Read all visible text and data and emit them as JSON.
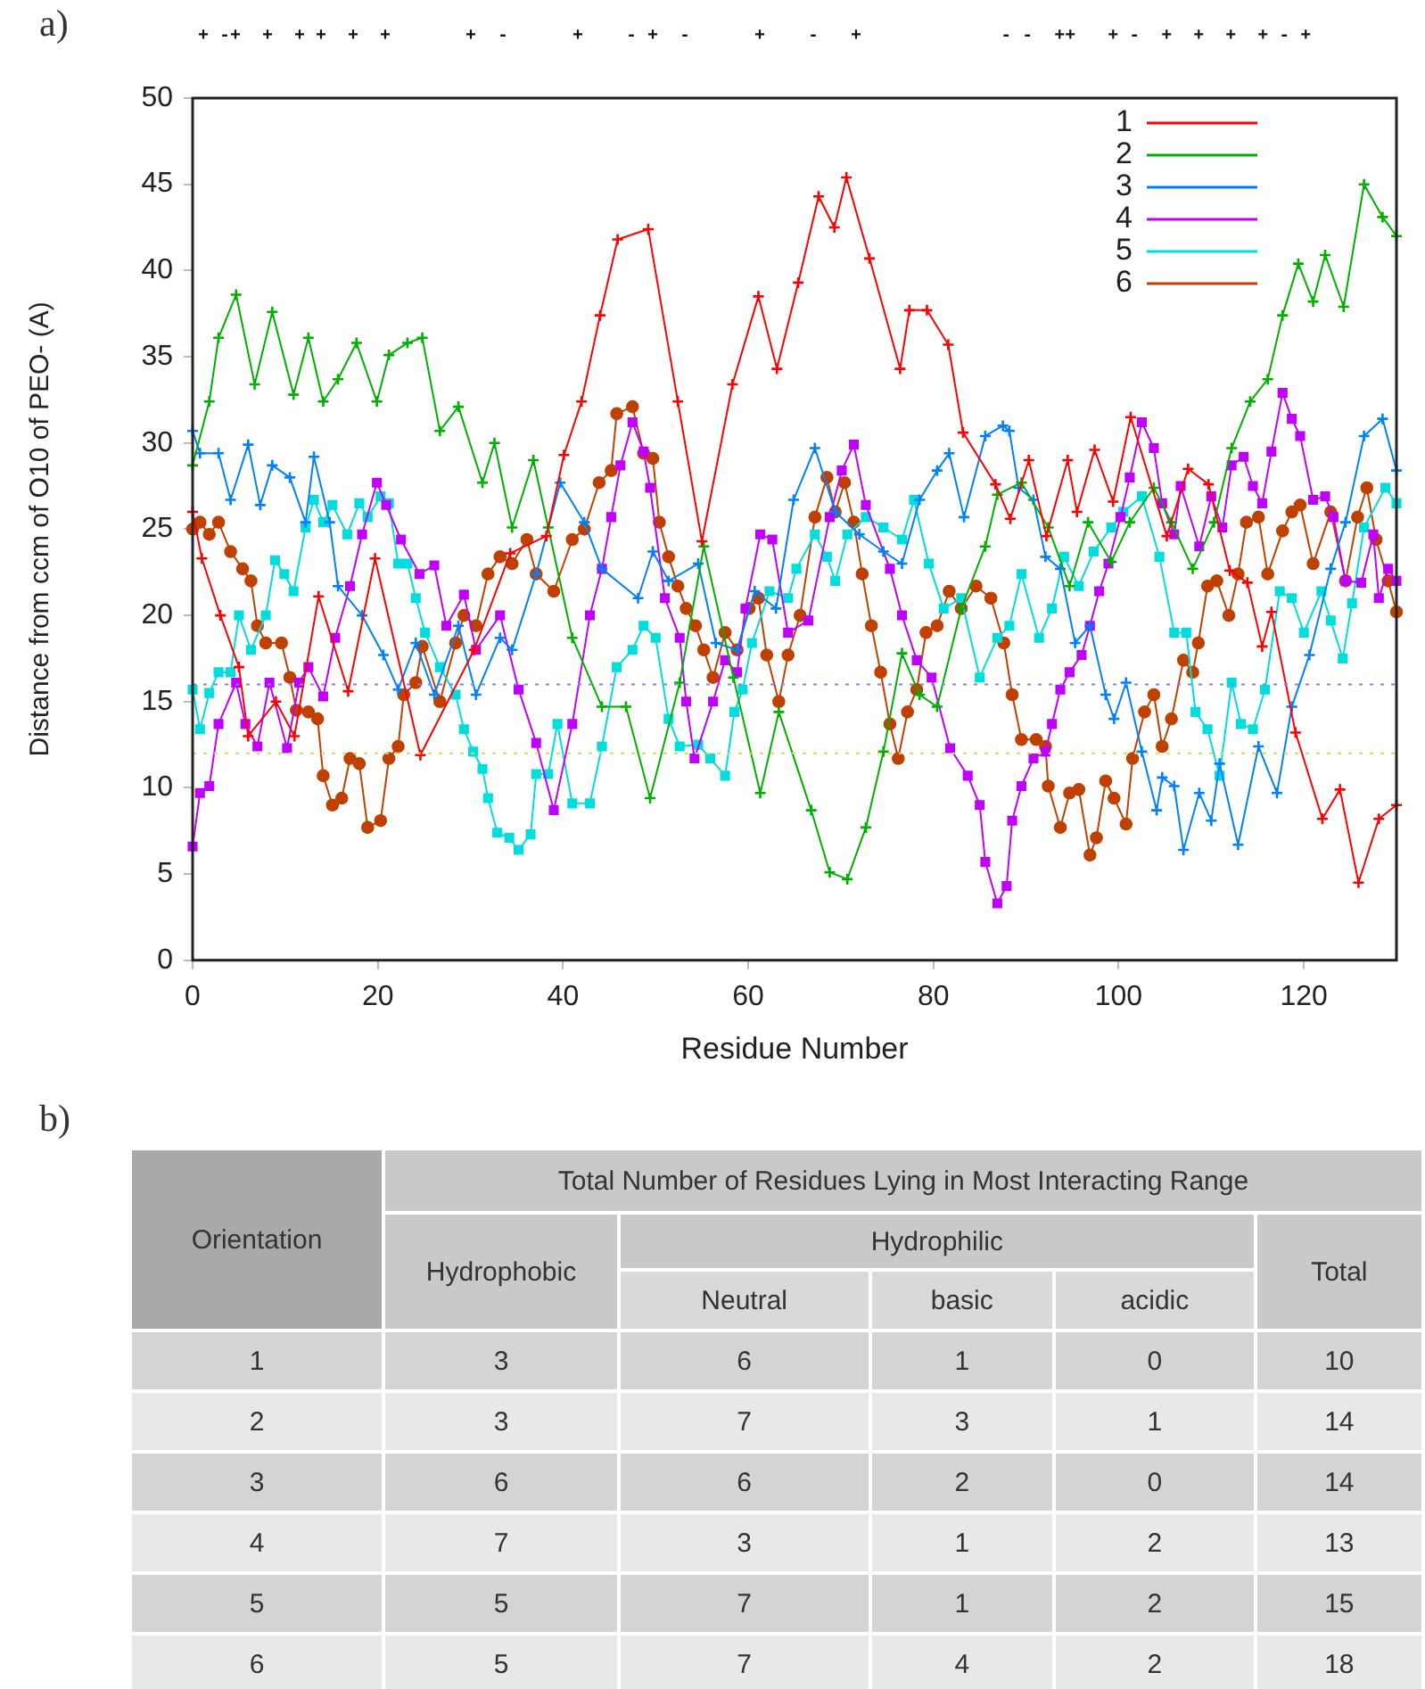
{
  "chart_data": [
    {
      "type": "line",
      "title": "a)",
      "annotations": [
        " + -+  +  + +  +  +       +  -      +    - +  -      +    -   +             - -  ++   + -  +  +  +  + - +"
      ],
      "xlabel": "Residue Number",
      "ylabel": "Distance from ccm of O10 of PEO- (A)",
      "xlim": [
        0,
        130
      ],
      "xticks": [
        0,
        20,
        40,
        60,
        80,
        100,
        120
      ],
      "ylim": [
        0,
        50
      ],
      "yticks": [
        0,
        5,
        10,
        15,
        20,
        25,
        30,
        35,
        40,
        45,
        50
      ],
      "legend": "top right",
      "ref_lines": [
        {
          "axis": "y",
          "value": 16,
          "color": "#8080ff",
          "line_style": "dotted"
        },
        {
          "axis": "y",
          "value": 12,
          "color": "#d8d860",
          "line_style": "dotted"
        }
      ],
      "series": [
        {
          "name": "1",
          "color": "#ff0000",
          "marker": "cross",
          "x": [
            0,
            1,
            3,
            5,
            6,
            9,
            11,
            13.6,
            16.8,
            19.7,
            24.6,
            30.4,
            34.3,
            38.2,
            40.1,
            42,
            44,
            45.9,
            49.2,
            52.4,
            55,
            58.3,
            61.1,
            63.1,
            65.4,
            67.6,
            69.3,
            70.6,
            73.1,
            76.4,
            77.4,
            79.3,
            81.6,
            83.2,
            86.7,
            88.3,
            90.3,
            92.2,
            94.5,
            95.5,
            97.4,
            99.4,
            101.3,
            105.2,
            107.5,
            109.7,
            112,
            113.9,
            115.5,
            116.5,
            119.1,
            122,
            123.9,
            125.9,
            128.1,
            130
          ],
          "values": [
            26,
            23.3,
            20,
            17,
            13,
            15,
            13,
            21.1,
            15.6,
            23.3,
            11.9,
            18,
            23.6,
            24.6,
            29.3,
            32.4,
            37.4,
            41.8,
            42.4,
            32.4,
            24.3,
            33.4,
            38.5,
            34.3,
            39.3,
            44.3,
            42.5,
            45.4,
            40.7,
            34.3,
            37.7,
            37.7,
            35.7,
            30.6,
            27.6,
            25.6,
            29,
            24.6,
            29,
            26,
            29.6,
            26.6,
            31.5,
            24.6,
            28.5,
            27.6,
            22.6,
            21.9,
            18.2,
            20.2,
            13.2,
            8.2,
            9.9,
            4.5,
            8.2,
            9
          ]
        },
        {
          "name": "2",
          "color": "#00b000",
          "marker": "cross",
          "x": [
            0,
            1.8,
            2.8,
            4.7,
            6.7,
            8.6,
            10.9,
            12.5,
            14.1,
            15.7,
            17.7,
            19.9,
            21.2,
            23.2,
            24.8,
            26.7,
            28.7,
            31.3,
            32.6,
            34.5,
            36.8,
            38.4,
            41,
            44.2,
            46.8,
            49.4,
            52.6,
            55.2,
            58.4,
            61.3,
            63.3,
            66.8,
            68.8,
            70.7,
            72.7,
            74.6,
            76.6,
            78.5,
            80.4,
            83,
            85.6,
            86.9,
            89.5,
            92.4,
            94.7,
            96.7,
            99.2,
            101.2,
            103.8,
            105.7,
            108,
            110.3,
            112.2,
            114.2,
            116.1,
            117.7,
            119.4,
            121,
            122.3,
            124.3,
            126.5,
            128.5,
            130
          ],
          "values": [
            28.7,
            32.4,
            36.1,
            38.6,
            33.4,
            37.6,
            32.8,
            36.1,
            32.4,
            33.7,
            35.8,
            32.4,
            35.1,
            35.8,
            36.1,
            30.7,
            32.1,
            27.7,
            30,
            25.1,
            29,
            25.1,
            18.7,
            14.7,
            14.7,
            9.4,
            16.1,
            24,
            16.4,
            9.7,
            14.4,
            8.7,
            5.1,
            4.7,
            7.7,
            12.1,
            17.8,
            15.4,
            14.7,
            20.4,
            24,
            27,
            27.7,
            25.1,
            21.7,
            25.4,
            23.1,
            25.4,
            27.4,
            25.4,
            22.7,
            25.4,
            29.7,
            32.4,
            33.7,
            37.4,
            40.4,
            38.2,
            40.9,
            37.9,
            45,
            43.1,
            42
          ]
        },
        {
          "name": "3",
          "color": "#0080ff",
          "marker": "cross",
          "x": [
            0,
            0.8,
            2.8,
            4.1,
            6,
            7.3,
            8.6,
            10.5,
            12.2,
            13.1,
            14.8,
            15.7,
            18.3,
            20.6,
            22.2,
            24.1,
            26.1,
            28.7,
            30.6,
            33.2,
            34.5,
            37.1,
            39.7,
            42.3,
            44.2,
            48.1,
            49.7,
            51.4,
            54.6,
            56.5,
            58.8,
            60.7,
            63,
            64.9,
            67.2,
            69.4,
            72,
            74.6,
            76.6,
            78.5,
            80.4,
            81.7,
            83.3,
            85.6,
            87.5,
            88.2,
            89.2,
            90.8,
            92.1,
            93.7,
            95.3,
            96.9,
            98.6,
            99.5,
            100.8,
            102.5,
            104.1,
            104.7,
            106,
            107,
            108.7,
            110,
            110.9,
            112.9,
            115.1,
            117.1,
            118.7,
            120.6,
            122.9,
            124.5,
            126.5,
            128.5,
            130
          ],
          "values": [
            30.7,
            29.4,
            29.4,
            26.7,
            29.9,
            26.4,
            28.7,
            28,
            25.4,
            29.2,
            25.4,
            21.7,
            20,
            17.7,
            15.7,
            18.4,
            15.4,
            19.4,
            15.4,
            18.7,
            18,
            22.4,
            27.7,
            25.4,
            22.7,
            21,
            23.7,
            22,
            23,
            18.4,
            18,
            21.4,
            20.4,
            26.7,
            29.7,
            26,
            24.7,
            23.7,
            23,
            26.7,
            28.4,
            29.4,
            25.7,
            30.4,
            31,
            30.7,
            27.4,
            26.7,
            23.4,
            22.7,
            18.4,
            19.4,
            15.4,
            14,
            16.1,
            12.1,
            8.7,
            10.6,
            10.1,
            6.4,
            9.7,
            8.1,
            11.4,
            6.7,
            12.4,
            9.7,
            14.7,
            17.7,
            22.7,
            25.4,
            30.4,
            31.4,
            28.4
          ]
        },
        {
          "name": "4",
          "color": "#c000ff",
          "marker": "square",
          "x": [
            0,
            0.8,
            1.8,
            2.8,
            4.7,
            5.7,
            7,
            8.3,
            10.2,
            11.5,
            12.5,
            14.1,
            15.4,
            17,
            18.3,
            19.9,
            20.9,
            22.5,
            24.5,
            26.1,
            27.4,
            29.3,
            30.6,
            33.2,
            35.2,
            37.1,
            39,
            41,
            42.9,
            44.2,
            45.2,
            46.2,
            47.5,
            48.7,
            49.4,
            51,
            52.6,
            53.3,
            54.2,
            56.2,
            57.5,
            58.8,
            59.7,
            61.3,
            62.6,
            64.3,
            66.5,
            68.8,
            70.1,
            71.4,
            72.7,
            75.3,
            76.6,
            78.2,
            79.8,
            81.8,
            83.7,
            85,
            85.6,
            86.9,
            87.9,
            88.5,
            89.5,
            90.8,
            92.1,
            92.8,
            93.7,
            94.7,
            96,
            96.9,
            97.9,
            98.9,
            100.2,
            101.2,
            102.5,
            103.8,
            104.7,
            106,
            106.7,
            108.7,
            110,
            111.2,
            112.2,
            113.5,
            114.5,
            115.5,
            116.5,
            117.7,
            118.7,
            119.6,
            121,
            122.3,
            123.2,
            124.5,
            126.2,
            127.5,
            128.1,
            129.1,
            130
          ],
          "values": [
            6.6,
            9.7,
            10.1,
            13.7,
            16.1,
            13.7,
            12.4,
            16.1,
            12.3,
            16.1,
            17,
            15.3,
            18.7,
            21.7,
            24.7,
            27.7,
            26.4,
            24.4,
            22.4,
            22.9,
            19.4,
            21.2,
            18,
            20,
            15.7,
            12.6,
            8.7,
            13.7,
            20,
            22.7,
            25.7,
            28.7,
            31.2,
            29.5,
            27.4,
            21,
            18.7,
            15,
            11.7,
            15,
            17.4,
            16.7,
            20.4,
            24.7,
            24.4,
            19,
            19.7,
            25.7,
            28.4,
            29.9,
            26.4,
            22.7,
            20,
            17.4,
            16.4,
            12.3,
            10.7,
            9,
            5.7,
            3.3,
            4.3,
            8.1,
            10.1,
            11.7,
            12.1,
            13.7,
            15.7,
            16.7,
            17.7,
            19.4,
            21.4,
            23,
            25.7,
            28,
            31.2,
            29.7,
            26.5,
            24.7,
            27.5,
            24,
            26.9,
            25.1,
            28.7,
            29.2,
            27.5,
            26.5,
            29.5,
            32.9,
            31.4,
            30.4,
            26.7,
            26.9,
            25.7,
            22,
            21.9,
            24.7,
            21,
            22.7,
            22
          ]
        },
        {
          "name": "5",
          "color": "#00dddd",
          "marker": "square",
          "x": [
            0,
            0.8,
            1.8,
            2.8,
            4.1,
            5,
            6.3,
            7.9,
            8.9,
            9.9,
            10.9,
            12.2,
            13.1,
            14.1,
            15.1,
            16.7,
            18,
            18.9,
            20.3,
            21.2,
            22.2,
            23.2,
            24.1,
            25.1,
            26.7,
            28.4,
            29.3,
            30.3,
            31.3,
            31.9,
            32.9,
            34.2,
            35.2,
            36.5,
            37.1,
            38.4,
            39.4,
            41,
            42.9,
            44.2,
            45.8,
            47.5,
            48.7,
            50,
            51.4,
            52.6,
            54.6,
            55.9,
            57.5,
            58.5,
            59.4,
            60.4,
            62.3,
            64.3,
            65.2,
            67.2,
            68.5,
            69.4,
            70.7,
            72.7,
            74.6,
            76.6,
            77.9,
            79.5,
            81.1,
            83,
            85,
            86.9,
            88.2,
            89.5,
            91.4,
            92.8,
            94.1,
            95.7,
            97.3,
            99.2,
            100.5,
            102.5,
            104.4,
            106,
            107.3,
            108.3,
            109.6,
            110.9,
            112.2,
            113.2,
            114.5,
            115.8,
            117.4,
            118.7,
            120,
            121.9,
            122.9,
            124.2,
            125.2,
            126.5,
            128.8,
            130
          ],
          "values": [
            15.7,
            13.4,
            15.5,
            16.7,
            16.7,
            20,
            18,
            20,
            23.2,
            22.4,
            21.4,
            25.1,
            26.7,
            25.4,
            26.4,
            24.7,
            26.5,
            25.7,
            26.9,
            26.5,
            23,
            23,
            21,
            19,
            17,
            15.4,
            13.4,
            12.1,
            11.1,
            9.4,
            7.4,
            7.1,
            6.4,
            7.3,
            10.8,
            10.8,
            13.7,
            9.1,
            9.1,
            12.4,
            17,
            18,
            19.4,
            18.7,
            14,
            12.4,
            12.5,
            11.7,
            10.7,
            14.4,
            15.7,
            18.4,
            21.4,
            21,
            22.7,
            24.7,
            23.4,
            22,
            24.7,
            25.7,
            25.1,
            24.4,
            26.7,
            23,
            20.4,
            21,
            16.4,
            18.7,
            19.4,
            22.4,
            18.7,
            20.4,
            23.4,
            21.7,
            23.7,
            25.1,
            26,
            26.9,
            23.4,
            19,
            19,
            14.4,
            13.4,
            10.7,
            16.1,
            13.7,
            13.4,
            15.7,
            21.4,
            21,
            19,
            21.4,
            19.7,
            17.5,
            20.7,
            25.1,
            27.4,
            26.5
          ]
        },
        {
          "name": "6",
          "color": "#c04000",
          "marker": "circle",
          "x": [
            0,
            0.8,
            1.8,
            2.8,
            4.1,
            5.4,
            6.3,
            7,
            7.9,
            9.6,
            10.5,
            11.2,
            12.5,
            13.5,
            14.1,
            15.1,
            16.1,
            17,
            18,
            18.9,
            20.3,
            21.2,
            22.2,
            22.8,
            24.1,
            24.8,
            26.7,
            28.4,
            29.3,
            30.6,
            31.9,
            33.2,
            34.5,
            36.1,
            37.1,
            39,
            41,
            42.3,
            43.9,
            45.2,
            45.8,
            47.5,
            48.7,
            49.7,
            50.4,
            51.4,
            52.4,
            53.3,
            54.3,
            55.2,
            56.2,
            57.5,
            58.8,
            60.1,
            61.1,
            62,
            63.3,
            64.3,
            65.6,
            67.2,
            68.5,
            69.4,
            70.4,
            71.4,
            72.3,
            73.3,
            74.3,
            75.3,
            76.2,
            77.2,
            78.2,
            79.2,
            80.4,
            81.7,
            83,
            84.6,
            86.2,
            87.6,
            88.5,
            89.5,
            91.1,
            92.1,
            92.4,
            93.7,
            94.7,
            95.7,
            96.9,
            97.6,
            98.6,
            99.5,
            100.8,
            101.5,
            102.8,
            103.8,
            104.7,
            105.7,
            107,
            108,
            108.6,
            109.6,
            110.6,
            111.9,
            112.9,
            113.8,
            115.1,
            116.1,
            117.7,
            118.7,
            119.6,
            121,
            122.9,
            124.5,
            125.8,
            126.8,
            127.8,
            129.1,
            130
          ],
          "values": [
            25,
            25.4,
            24.7,
            25.4,
            23.7,
            22.7,
            22,
            19.4,
            18.4,
            18.4,
            16.4,
            14.5,
            14.4,
            14,
            10.7,
            9,
            9.4,
            11.7,
            11.4,
            7.7,
            8.1,
            11.7,
            12.4,
            15.4,
            16.1,
            18.2,
            15,
            18.4,
            20,
            19.4,
            22.4,
            23.4,
            23,
            24.4,
            22.4,
            21.4,
            24.4,
            25,
            27.7,
            28.4,
            31.7,
            32.1,
            29.4,
            29.1,
            25.4,
            23.4,
            21.7,
            20.4,
            19.4,
            18,
            16.4,
            19,
            18,
            20.4,
            21,
            17.7,
            15,
            17.7,
            20,
            25.7,
            28,
            26,
            27.7,
            25.4,
            22.4,
            19.4,
            16.7,
            13.7,
            11.7,
            14.4,
            15.7,
            19,
            19.4,
            21.4,
            20.4,
            21.7,
            21,
            18.4,
            15.4,
            12.8,
            12.8,
            12.4,
            10.1,
            7.7,
            9.7,
            9.9,
            6.1,
            7.1,
            10.4,
            9.4,
            7.9,
            11.7,
            14.4,
            15.4,
            12.4,
            14,
            17.4,
            16.7,
            18.4,
            21.7,
            22,
            20,
            22.4,
            25.4,
            25.7,
            22.4,
            24.9,
            26,
            26.4,
            23,
            26,
            22,
            25.7,
            27.4,
            24.4,
            22,
            20.2
          ]
        }
      ]
    },
    {
      "type": "heatmap",
      "title": "b)",
      "data_labels": true,
      "ylabel": "Orientation",
      "subtitle": "Total Number of Residues Lying in Most Interacting Range",
      "annotations": [
        "Hydrophilic"
      ],
      "categories": [
        "Hydrophobic",
        "Neutral",
        "basic",
        "acidic",
        "Total"
      ],
      "y_categories": [
        "1",
        "2",
        "3",
        "4",
        "5",
        "6"
      ],
      "cells": [
        [
          3,
          6,
          1,
          0,
          10
        ],
        [
          3,
          7,
          3,
          1,
          14
        ],
        [
          6,
          6,
          2,
          0,
          14
        ],
        [
          7,
          3,
          1,
          2,
          13
        ],
        [
          5,
          7,
          1,
          2,
          15
        ],
        [
          5,
          7,
          4,
          2,
          18
        ]
      ]
    }
  ]
}
